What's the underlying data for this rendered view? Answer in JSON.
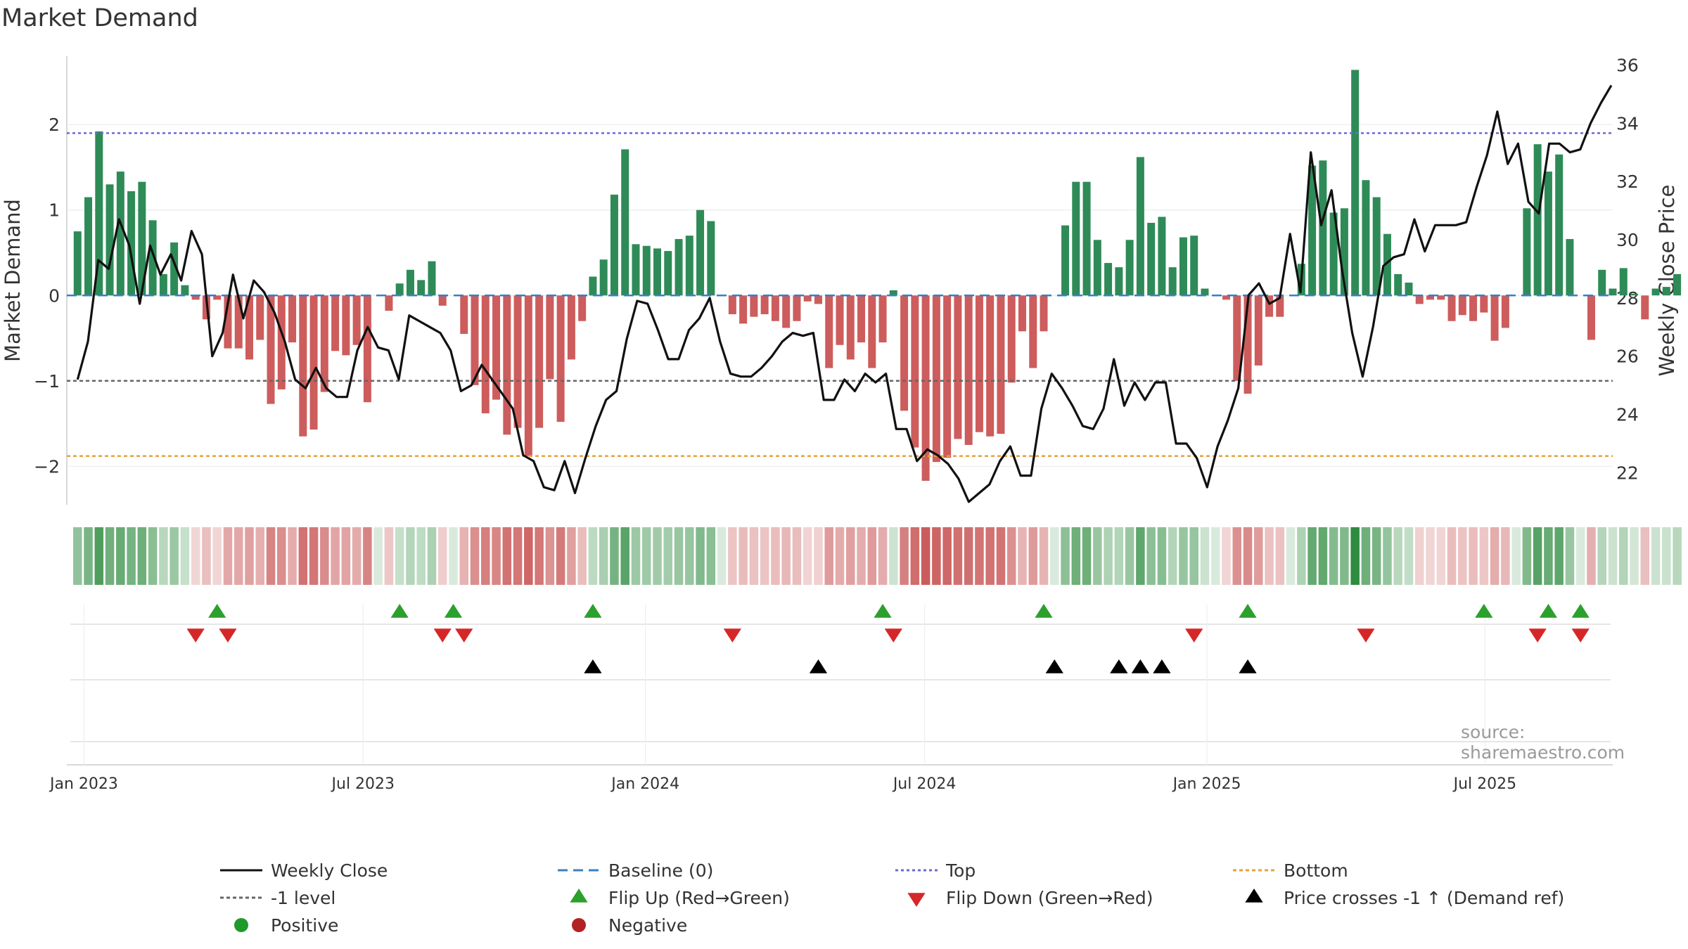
{
  "chart_data": {
    "type": "bar",
    "title": "Market Demand",
    "ylabel": "Market Demand",
    "y2label": "Weekly Close Price",
    "ylim": [
      -2.45,
      2.8
    ],
    "y2lim": [
      20.9,
      36.3
    ],
    "yticks": [
      -2,
      -1,
      0,
      1,
      2
    ],
    "yticklabels": [
      "−2",
      "−1",
      "0",
      "1",
      "2"
    ],
    "y2ticks": [
      22,
      24,
      26,
      28,
      30,
      32,
      34,
      36
    ],
    "y2ticklabels": [
      "22",
      "24",
      "26",
      "28",
      "30",
      "32",
      "34",
      "36"
    ],
    "xlim": [
      -1,
      143
    ],
    "xticks": [
      {
        "week": 0.6,
        "label": "Jan 2023"
      },
      {
        "week": 26.6,
        "label": "Jul 2023"
      },
      {
        "week": 52.9,
        "label": "Jan 2024"
      },
      {
        "week": 78.9,
        "label": "Jul 2024"
      },
      {
        "week": 105.2,
        "label": "Jan 2025"
      },
      {
        "week": 131.1,
        "label": "Jul 2025"
      }
    ],
    "reference_lines": {
      "top": 1.9,
      "bottom": -1.88,
      "minus_one": -1,
      "baseline": 0
    },
    "demand": [
      0.75,
      1.15,
      1.92,
      1.3,
      1.45,
      1.22,
      1.33,
      0.88,
      0.25,
      0.62,
      0.12,
      -0.05,
      -0.28,
      -0.05,
      -0.62,
      -0.62,
      -0.75,
      -0.52,
      -1.27,
      -1.1,
      -0.55,
      -1.65,
      -1.57,
      -1.13,
      -0.65,
      -0.7,
      -0.58,
      -1.25,
      0,
      -0.18,
      0.14,
      0.3,
      0.18,
      0.4,
      -0.12,
      0,
      -0.45,
      -1.05,
      -1.38,
      -1.22,
      -1.63,
      -1.55,
      -1.88,
      -1.55,
      -0.98,
      -1.48,
      -0.75,
      -0.3,
      0.22,
      0.42,
      1.18,
      1.71,
      0.6,
      0.58,
      0.55,
      0.52,
      0.66,
      0.7,
      1.0,
      0.87,
      0,
      -0.22,
      -0.33,
      -0.25,
      -0.22,
      -0.3,
      -0.38,
      -0.3,
      -0.07,
      -0.1,
      -0.85,
      -0.58,
      -0.75,
      -0.55,
      -0.85,
      -0.55,
      0.06,
      -1.35,
      -1.78,
      -2.17,
      -1.95,
      -1.9,
      -1.68,
      -1.75,
      -1.6,
      -1.65,
      -1.62,
      -1.02,
      -0.42,
      -0.85,
      -0.42,
      0,
      0.82,
      1.33,
      1.33,
      0.65,
      0.38,
      0.33,
      0.65,
      1.62,
      0.85,
      0.92,
      0.33,
      0.68,
      0.7,
      0.08,
      0,
      -0.05,
      -1.0,
      -1.15,
      -0.82,
      -0.25,
      -0.25,
      0,
      0.37,
      1.52,
      1.58,
      0.97,
      1.02,
      2.64,
      1.35,
      1.15,
      0.72,
      0.25,
      0.15,
      -0.1,
      -0.05,
      -0.05,
      -0.3,
      -0.23,
      -0.3,
      -0.2,
      -0.53,
      -0.38,
      0,
      1.02,
      1.77,
      1.45,
      1.65,
      0.66,
      0,
      -0.52,
      0.3,
      0.08,
      0.32,
      0.02,
      -0.28,
      0.08,
      0.1,
      0.25
    ],
    "price_line": {
      "name": "Weekly Close",
      "points": [
        [
          0,
          25.2
        ],
        [
          1,
          26.5
        ],
        [
          2,
          29.3
        ],
        [
          3,
          29.0
        ],
        [
          4,
          30.7
        ],
        [
          5,
          29.8
        ],
        [
          6,
          27.8
        ],
        [
          7,
          29.8
        ],
        [
          8,
          28.8
        ],
        [
          9,
          29.5
        ],
        [
          10,
          28.6
        ],
        [
          11,
          30.3
        ],
        [
          12,
          29.5
        ],
        [
          13,
          26.0
        ],
        [
          14,
          26.8
        ],
        [
          15,
          28.8
        ],
        [
          16,
          27.3
        ],
        [
          17,
          28.6
        ],
        [
          18,
          28.2
        ],
        [
          19,
          27.5
        ],
        [
          20,
          26.5
        ],
        [
          21,
          25.2
        ],
        [
          22,
          24.9
        ],
        [
          23,
          25.6
        ],
        [
          24,
          24.9
        ],
        [
          25,
          24.6
        ],
        [
          26,
          24.6
        ],
        [
          27,
          26.2
        ],
        [
          28,
          27.0
        ],
        [
          29,
          26.3
        ],
        [
          30,
          26.2
        ],
        [
          31,
          25.2
        ],
        [
          32,
          27.4
        ],
        [
          33,
          27.2
        ],
        [
          34,
          27.0
        ],
        [
          35,
          26.8
        ],
        [
          36,
          26.2
        ],
        [
          37,
          24.8
        ],
        [
          38,
          25.0
        ],
        [
          39,
          25.7
        ],
        [
          40,
          25.2
        ],
        [
          41,
          24.7
        ],
        [
          42,
          24.2
        ],
        [
          43,
          22.6
        ],
        [
          44,
          22.4
        ],
        [
          45,
          21.5
        ],
        [
          46,
          21.4
        ],
        [
          47,
          22.4
        ],
        [
          48,
          21.3
        ],
        [
          49,
          22.5
        ],
        [
          50,
          23.6
        ],
        [
          51,
          24.5
        ],
        [
          52,
          24.8
        ],
        [
          53,
          26.6
        ],
        [
          54,
          27.9
        ],
        [
          55,
          27.8
        ],
        [
          56,
          26.9
        ],
        [
          57,
          25.9
        ],
        [
          58,
          25.9
        ],
        [
          59,
          26.9
        ],
        [
          60,
          27.3
        ],
        [
          61,
          28.0
        ],
        [
          62,
          26.5
        ],
        [
          63,
          25.4
        ],
        [
          64,
          25.3
        ],
        [
          65,
          25.3
        ],
        [
          66,
          25.6
        ],
        [
          67,
          26.0
        ],
        [
          68,
          26.5
        ],
        [
          69,
          26.8
        ],
        [
          70,
          26.7
        ],
        [
          71,
          26.8
        ],
        [
          72,
          24.5
        ],
        [
          73,
          24.5
        ],
        [
          74,
          25.2
        ],
        [
          75,
          24.8
        ],
        [
          76,
          25.4
        ],
        [
          77,
          25.1
        ],
        [
          78,
          25.4
        ],
        [
          79,
          23.5
        ],
        [
          80,
          23.5
        ],
        [
          81,
          22.4
        ],
        [
          82,
          22.8
        ],
        [
          83,
          22.6
        ],
        [
          84,
          22.3
        ],
        [
          85,
          21.8
        ],
        [
          86,
          21.0
        ],
        [
          87,
          21.3
        ],
        [
          88,
          21.6
        ],
        [
          89,
          22.4
        ],
        [
          90,
          22.9
        ],
        [
          91,
          21.9
        ],
        [
          92,
          21.9
        ],
        [
          93,
          24.2
        ],
        [
          94,
          25.4
        ],
        [
          95,
          24.9
        ],
        [
          96,
          24.3
        ],
        [
          97,
          23.6
        ],
        [
          98,
          23.5
        ],
        [
          99,
          24.2
        ],
        [
          100,
          25.9
        ],
        [
          101,
          24.3
        ],
        [
          102,
          25.1
        ],
        [
          103,
          24.5
        ],
        [
          104,
          25.1
        ],
        [
          105,
          25.1
        ],
        [
          106,
          23.0
        ],
        [
          107,
          23.0
        ],
        [
          108,
          22.5
        ],
        [
          109,
          21.5
        ],
        [
          110,
          22.9
        ],
        [
          111,
          23.8
        ],
        [
          112,
          24.9
        ],
        [
          113,
          28.1
        ],
        [
          114,
          28.5
        ],
        [
          115,
          27.8
        ],
        [
          116,
          28.0
        ],
        [
          117,
          30.2
        ],
        [
          118,
          28.2
        ],
        [
          119,
          33.0
        ],
        [
          120,
          30.5
        ],
        [
          121,
          31.7
        ],
        [
          122,
          29.0
        ],
        [
          123,
          26.8
        ],
        [
          124,
          25.3
        ],
        [
          125,
          27.0
        ],
        [
          126,
          29.1
        ],
        [
          127,
          29.4
        ],
        [
          128,
          29.5
        ],
        [
          129,
          30.7
        ],
        [
          130,
          29.6
        ],
        [
          131,
          30.5
        ],
        [
          132,
          30.5
        ],
        [
          133,
          30.5
        ],
        [
          134,
          30.6
        ],
        [
          135,
          31.8
        ],
        [
          136,
          32.9
        ],
        [
          137,
          34.4
        ],
        [
          138,
          32.6
        ],
        [
          139,
          33.3
        ],
        [
          140,
          31.3
        ],
        [
          141,
          30.9
        ],
        [
          142,
          33.3
        ],
        [
          143,
          33.3
        ],
        [
          144,
          33.0
        ],
        [
          145,
          33.1
        ],
        [
          146,
          34.0
        ],
        [
          147,
          34.7
        ],
        [
          148,
          35.3
        ]
      ]
    },
    "flip_up_weeks": [
      13,
      30,
      35,
      48,
      75,
      90,
      109,
      131,
      137,
      140
    ],
    "flip_down_weeks": [
      11,
      14,
      34,
      36,
      61,
      76,
      104,
      120,
      136,
      140
    ],
    "price_cross_weeks": [
      48,
      69,
      91,
      97,
      99,
      101,
      109
    ],
    "source": "source: sharemaestro.com",
    "legend": [
      {
        "key": "weekly-close",
        "label": "Weekly Close"
      },
      {
        "key": "baseline",
        "label": "Baseline (0)"
      },
      {
        "key": "top",
        "label": "Top"
      },
      {
        "key": "bottom",
        "label": "Bottom"
      },
      {
        "key": "minus-one",
        "label": "-1 level"
      },
      {
        "key": "flip-up",
        "label": "Flip Up (Red→Green)"
      },
      {
        "key": "flip-down",
        "label": "Flip Down (Green→Red)"
      },
      {
        "key": "price-cross",
        "label": "Price crosses -1 ↑ (Demand ref)"
      },
      {
        "key": "positive",
        "label": "Positive"
      },
      {
        "key": "negative",
        "label": "Negative"
      }
    ],
    "colors": {
      "positive": "#2e8b57",
      "negative": "#cd5c5c",
      "price": "#111111",
      "top": "#6a6ad6",
      "bottom": "#e6a23c",
      "minus_one": "#666666",
      "baseline": "#3a7fc4",
      "flip_up": "#2ca02c",
      "flip_down": "#d62728",
      "cross": "#000000",
      "legend_positive": "#1f9a2a",
      "legend_negative": "#b22222"
    }
  }
}
